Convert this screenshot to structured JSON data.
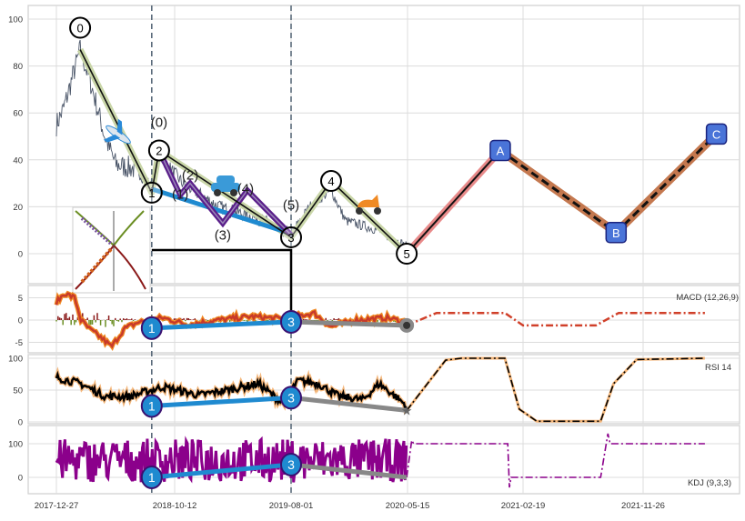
{
  "chart_data": {
    "type": "line",
    "title": "",
    "x_ticks": [
      {
        "label": "2017-12-27",
        "day": 0
      },
      {
        "label": "2018-10-12",
        "day": 289
      },
      {
        "label": "2019-08-01",
        "day": 582
      },
      {
        "label": "2020-05-15",
        "day": 870
      },
      {
        "label": "2021-02-19",
        "day": 1149
      },
      {
        "label": "2021-11-26",
        "day": 1429
      }
    ],
    "main": {
      "y_ticks": [
        0,
        20,
        40,
        60,
        80,
        100
      ],
      "ylim": [
        -13,
        106
      ],
      "price_anchors": [
        [
          0,
          55
        ],
        [
          18,
          62
        ],
        [
          58,
          87
        ],
        [
          85,
          72
        ],
        [
          118,
          50
        ],
        [
          145,
          38
        ],
        [
          196,
          36
        ],
        [
          233,
          28
        ],
        [
          251,
          42
        ],
        [
          309,
          30
        ],
        [
          400,
          20
        ],
        [
          500,
          15
        ],
        [
          582,
          8
        ],
        [
          627,
          20
        ],
        [
          681,
          27
        ],
        [
          717,
          14
        ],
        [
          800,
          10
        ],
        [
          868,
          3
        ]
      ],
      "waves": [
        {
          "label": "0",
          "day": 58,
          "value": 87
        },
        {
          "label": "1",
          "day": 233,
          "value": 26
        },
        {
          "label": "2",
          "day": 251,
          "value": 44
        },
        {
          "label": "3",
          "day": 582,
          "value": 7
        },
        {
          "label": "4",
          "day": 681,
          "value": 31
        },
        {
          "label": "5",
          "day": 868,
          "value": 0
        }
      ],
      "sub_waves": [
        {
          "label": "(0)",
          "day": 251,
          "value": 44
        },
        {
          "label": "(1)",
          "day": 303,
          "value": 25
        },
        {
          "label": "(2)",
          "day": 328,
          "value": 30
        },
        {
          "label": "(3)",
          "day": 410,
          "value": 13
        },
        {
          "label": "(4)",
          "day": 472,
          "value": 27
        },
        {
          "label": "(5)",
          "day": 582,
          "value": 8
        }
      ],
      "forecast_waves": [
        {
          "label": "A",
          "day": 1094,
          "value": 44
        },
        {
          "label": "B",
          "day": 1366,
          "value": 9
        },
        {
          "label": "C",
          "day": 1600,
          "value": 51
        }
      ],
      "vertical_markers": [
        233,
        582
      ],
      "colors": {
        "price": "#4a5568",
        "wave": "#c9d6a8",
        "sub": "#5a1f8a",
        "trend": "#1f8ad0",
        "fc1": "#e88a8a",
        "fc2": "#c4784f"
      }
    },
    "macd": {
      "label": "MACD (12,26,9)",
      "y_ticks": [
        -5,
        0,
        5
      ],
      "points": [
        {
          "label": "1",
          "day": 233,
          "value": -1.8
        },
        {
          "label": "3",
          "day": 582,
          "value": -0.4
        }
      ],
      "end": {
        "day": 868,
        "value": -1.2
      },
      "forecast": [
        [
          868,
          -1.2
        ],
        [
          940,
          1.6
        ],
        [
          1105,
          1.6
        ],
        [
          1149,
          -1.2
        ],
        [
          1319,
          -1.2
        ],
        [
          1372,
          1.6
        ],
        [
          1573,
          1.6
        ]
      ],
      "anchors": [
        [
          0,
          4
        ],
        [
          20,
          6
        ],
        [
          45,
          5
        ],
        [
          60,
          0
        ],
        [
          80,
          -2
        ],
        [
          110,
          -4
        ],
        [
          135,
          -6
        ],
        [
          165,
          -2
        ],
        [
          200,
          -0.5
        ],
        [
          260,
          0.5
        ],
        [
          320,
          -1
        ],
        [
          400,
          0
        ],
        [
          480,
          0.8
        ],
        [
          560,
          0.3
        ],
        [
          600,
          1
        ],
        [
          640,
          1.5
        ],
        [
          680,
          -1.5
        ],
        [
          740,
          0
        ],
        [
          820,
          0.5
        ],
        [
          868,
          -0.5
        ]
      ]
    },
    "rsi": {
      "label": "RSI 14",
      "y_ticks": [
        0,
        50,
        100
      ],
      "points": [
        {
          "label": "1",
          "day": 233,
          "value": 25
        },
        {
          "label": "3",
          "day": 582,
          "value": 38
        }
      ],
      "end": {
        "day": 868,
        "value": 18
      },
      "forecast": [
        [
          868,
          18
        ],
        [
          962,
          97
        ],
        [
          1000,
          100
        ],
        [
          1105,
          100
        ],
        [
          1140,
          20
        ],
        [
          1181,
          1
        ],
        [
          1330,
          1
        ],
        [
          1360,
          60
        ],
        [
          1414,
          98
        ],
        [
          1573,
          100
        ]
      ],
      "anchors": [
        [
          0,
          70
        ],
        [
          60,
          60
        ],
        [
          120,
          40
        ],
        [
          180,
          40
        ],
        [
          260,
          55
        ],
        [
          350,
          42
        ],
        [
          420,
          50
        ],
        [
          500,
          60
        ],
        [
          560,
          30
        ],
        [
          600,
          65
        ],
        [
          650,
          60
        ],
        [
          700,
          40
        ],
        [
          760,
          35
        ],
        [
          800,
          60
        ],
        [
          850,
          35
        ],
        [
          868,
          25
        ]
      ]
    },
    "kdj": {
      "label": "KDJ (9,3,3)",
      "y_ticks": [
        0,
        100
      ],
      "points": [
        {
          "label": "1",
          "day": 233,
          "value": 0
        },
        {
          "label": "3",
          "day": 582,
          "value": 38
        }
      ],
      "end": {
        "day": 868,
        "value": 0
      },
      "forecast": [
        [
          868,
          0
        ],
        [
          880,
          110
        ],
        [
          885,
          100
        ],
        [
          1105,
          100
        ],
        [
          1112,
          100
        ],
        [
          1116,
          -30
        ],
        [
          1120,
          0
        ],
        [
          1330,
          0
        ],
        [
          1347,
          130
        ],
        [
          1352,
          100
        ],
        [
          1573,
          100
        ]
      ],
      "anchors": [
        [
          0,
          60
        ],
        [
          868,
          55
        ]
      ]
    }
  }
}
